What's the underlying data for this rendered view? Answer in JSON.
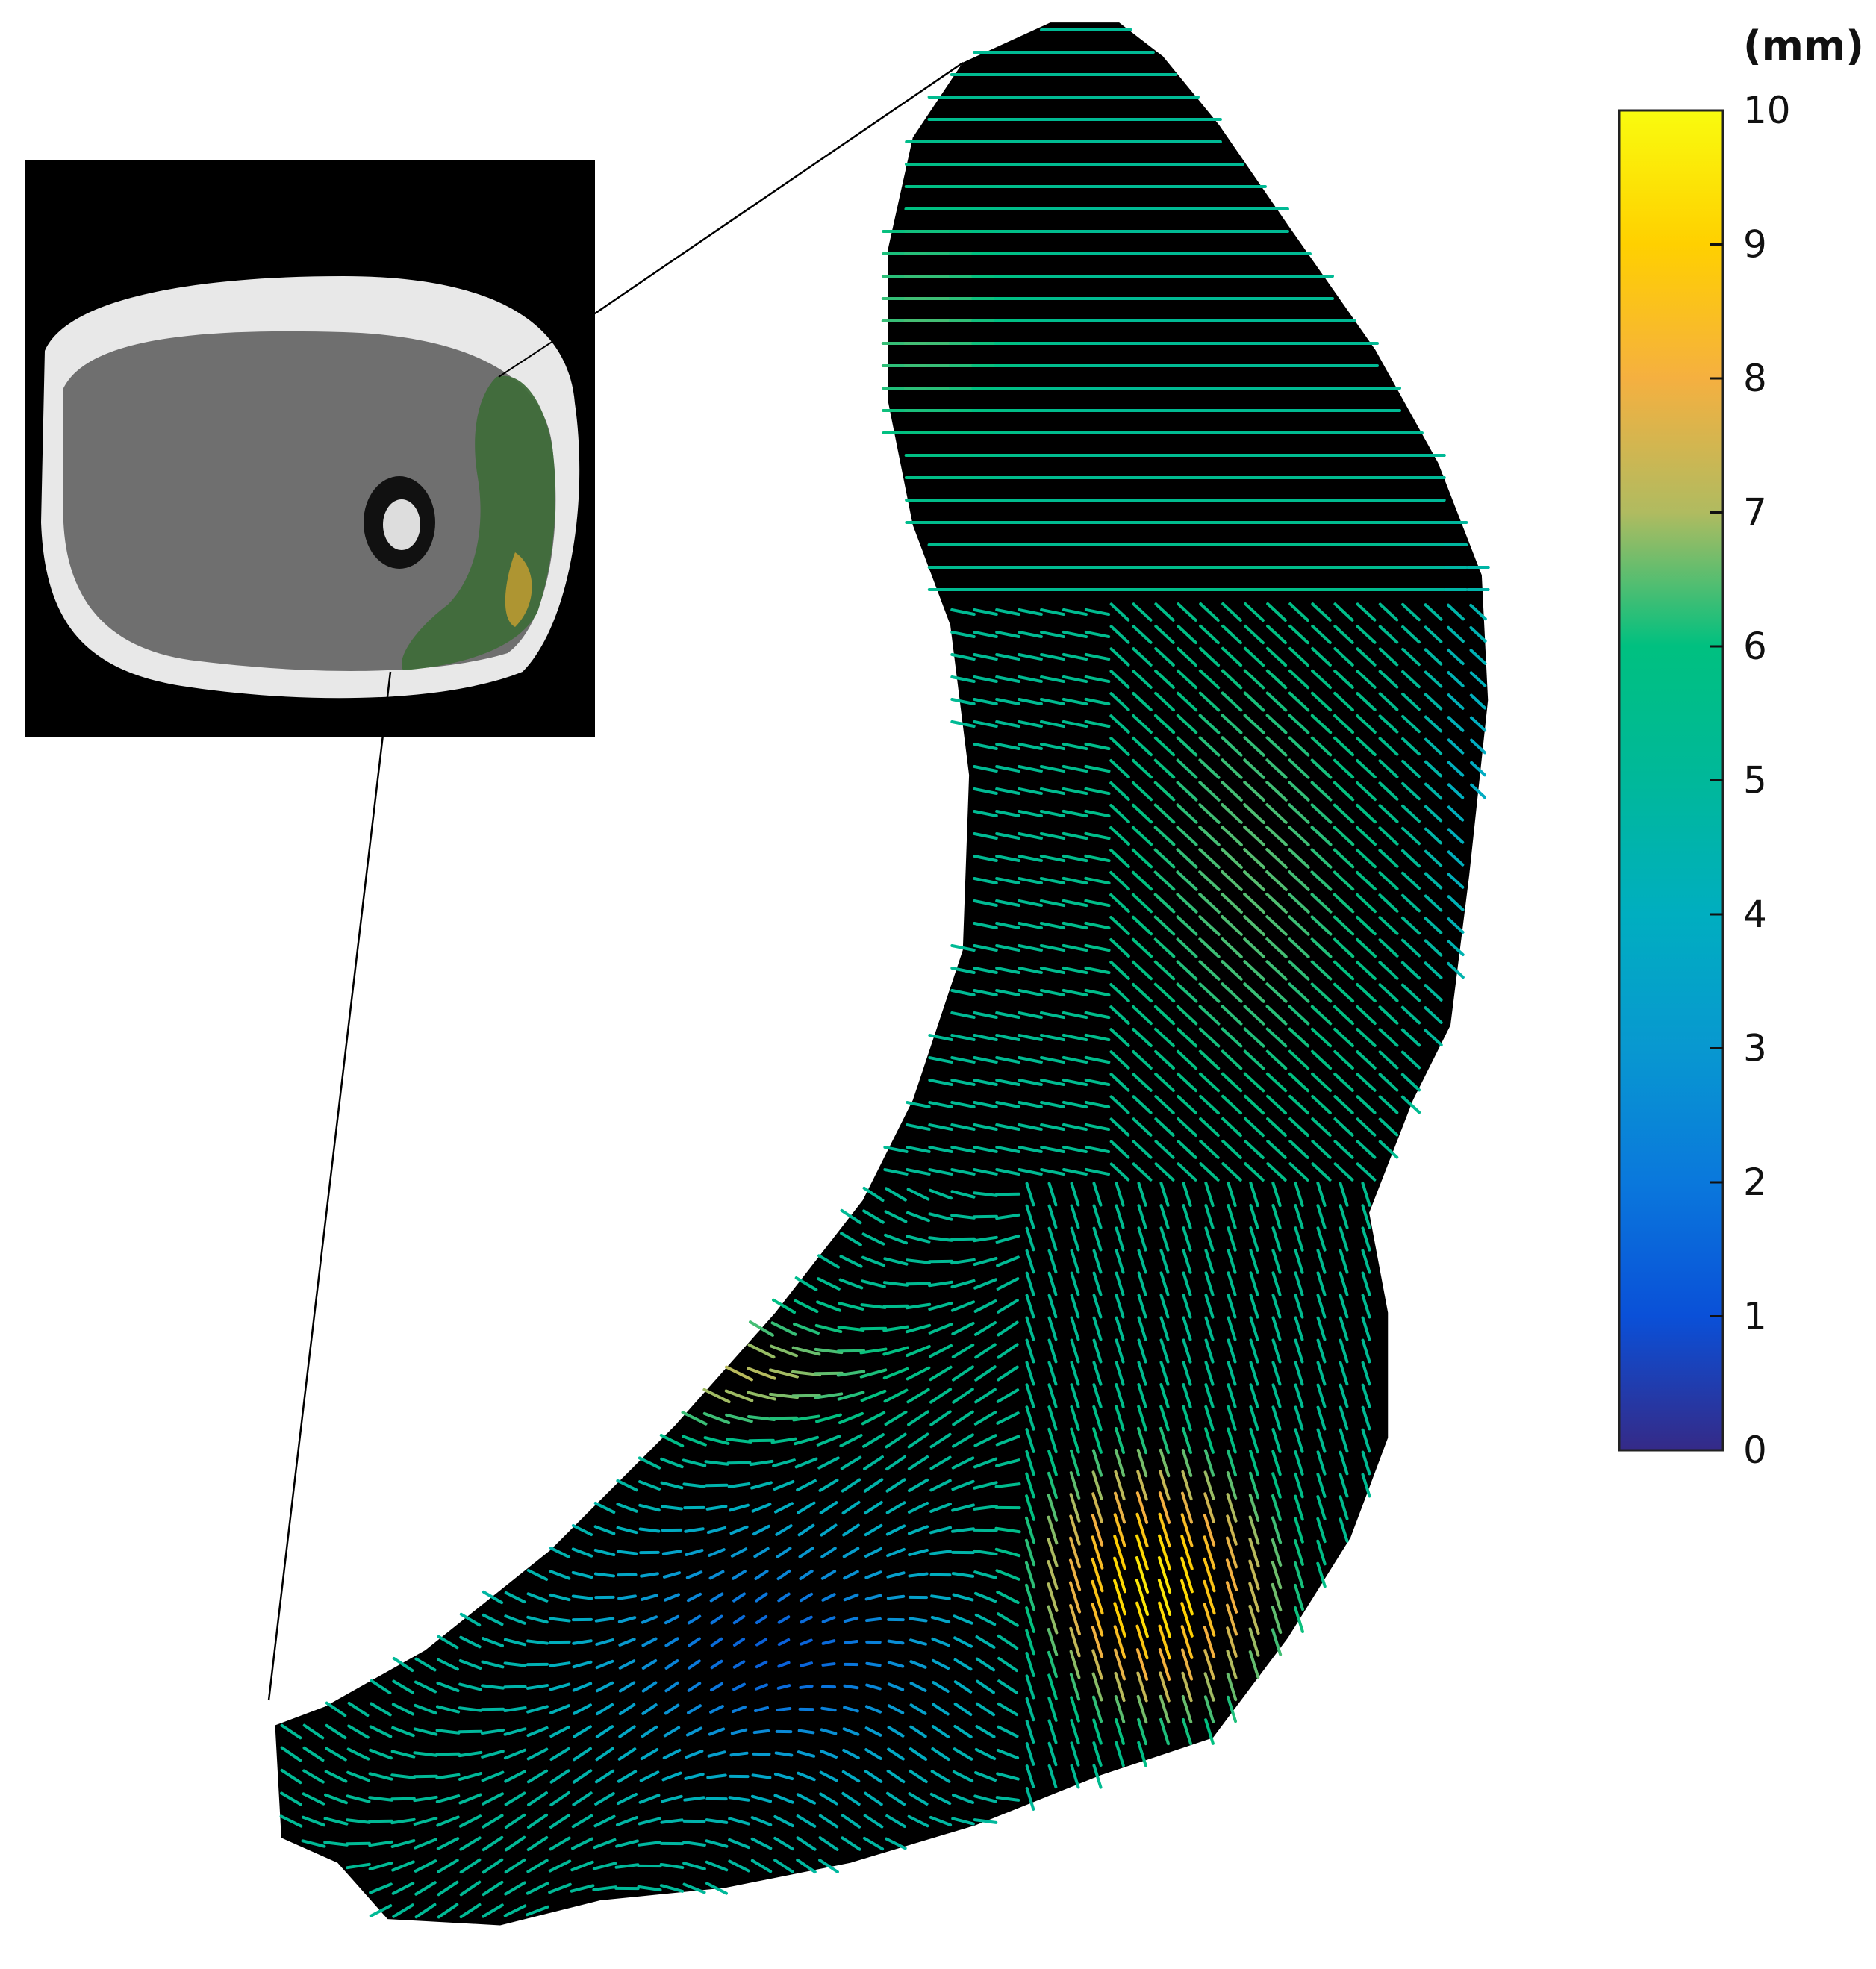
{
  "chart_data": {
    "type": "quiver",
    "description_visible": false,
    "colorbar": {
      "unit_label": "(mm)",
      "range": [
        0,
        10
      ],
      "ticks": [
        "0",
        "1",
        "2",
        "3",
        "4",
        "5",
        "6",
        "7",
        "8",
        "9",
        "10"
      ],
      "colormap": "parula",
      "colors": {
        "0": "#352a87",
        "1": "#0a50d8",
        "2": "#0a78dc",
        "3": "#0898d0",
        "4": "#00aec0",
        "5": "#00b89a",
        "6": "#00c080",
        "7": "#b0bb60",
        "8": "#f5b040",
        "9": "#ffd000",
        "10": "#f9fb0e"
      }
    },
    "field": {
      "magnitude_range_mm": [
        0,
        10
      ],
      "regions": [
        {
          "region": "upper",
          "direction": "leftward",
          "magnitude_mm": 5.5
        },
        {
          "region": "middle",
          "direction": "up-left diagonal",
          "magnitude_mm": 6.5
        },
        {
          "region": "lower-left",
          "direction": "swirling",
          "magnitude_mm": 2
        },
        {
          "region": "lower-right",
          "direction": "upward",
          "magnitude_mm": 9.5
        }
      ]
    },
    "background": "#000000",
    "inset": "axial MRI of thigh with the highlighted muscle"
  }
}
